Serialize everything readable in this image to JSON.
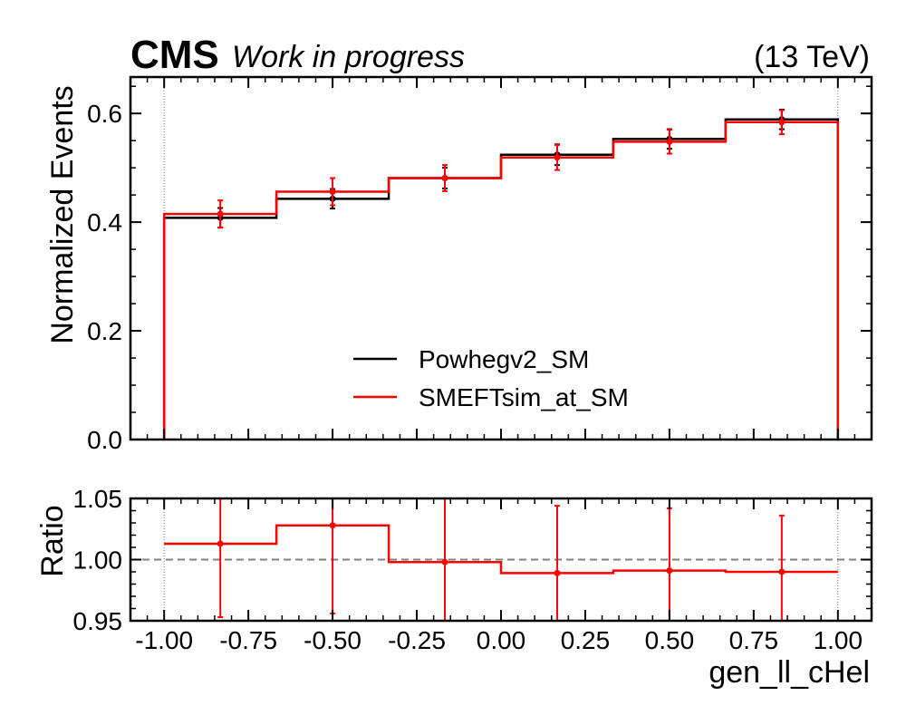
{
  "header": {
    "experiment": "CMS",
    "status": "Work in progress",
    "energy": "(13 TeV)"
  },
  "chart_data": [
    {
      "type": "line",
      "panel": "main",
      "ylabel": "Normalized Events",
      "ylim": [
        0,
        0.667
      ],
      "yticks": [
        0.0,
        0.2,
        0.4,
        0.6
      ],
      "ytick_labels": [
        "0.0",
        "0.2",
        "0.4",
        "0.6"
      ],
      "xlim": [
        -1.1,
        1.1
      ],
      "bin_edges": [
        -1.0,
        -0.6667,
        -0.3333,
        0.0,
        0.3333,
        0.6667,
        1.0
      ],
      "bin_centers": [
        -0.8333,
        -0.5,
        -0.1667,
        0.1667,
        0.5,
        0.8333
      ],
      "series": [
        {
          "name": "Powhegv2_SM",
          "color": "#000000",
          "values": [
            0.408,
            0.443,
            0.481,
            0.524,
            0.553,
            0.589
          ],
          "errors": [
            0.018,
            0.018,
            0.019,
            0.019,
            0.018,
            0.018
          ]
        },
        {
          "name": "SMEFTsim_at_SM",
          "color": "#ff0000",
          "values": [
            0.415,
            0.456,
            0.481,
            0.519,
            0.548,
            0.584
          ],
          "errors": [
            0.025,
            0.025,
            0.024,
            0.023,
            0.022,
            0.022
          ]
        }
      ],
      "legend": "lower-center"
    },
    {
      "type": "line",
      "panel": "ratio",
      "ylabel": "Ratio",
      "xlabel": "gen_ll_cHel",
      "ylim": [
        0.95,
        1.05
      ],
      "yticks": [
        0.95,
        1.0,
        1.05
      ],
      "ytick_labels": [
        "0.95",
        "1.00",
        "1.05"
      ],
      "xticks": [
        -1.0,
        -0.75,
        -0.5,
        -0.25,
        0.0,
        0.25,
        0.5,
        0.75,
        1.0
      ],
      "xtick_labels": [
        "-1.00",
        "-0.75",
        "-0.50",
        "-0.25",
        "0.00",
        "0.25",
        "0.50",
        "0.75",
        "1.00"
      ],
      "reference_line": 1.0,
      "series": [
        {
          "name": "SMEFTsim_at_SM",
          "color": "#ff0000",
          "values": [
            1.013,
            1.028,
            0.998,
            0.989,
            0.991,
            0.99
          ],
          "errors": [
            0.06,
            0.072,
            0.06,
            0.055,
            0.051,
            0.046
          ]
        }
      ]
    }
  ]
}
